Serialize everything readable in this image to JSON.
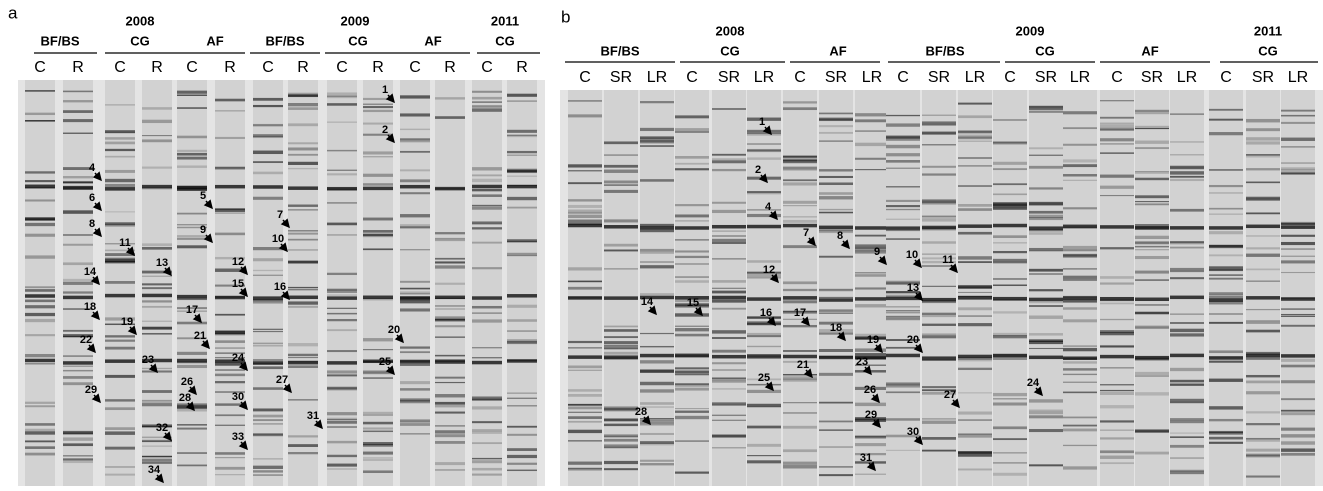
{
  "panels": [
    {
      "label": "a",
      "years": [
        "2008",
        "2009",
        "2011"
      ],
      "groups": [
        "BF/BS",
        "CG",
        "AF",
        "BF/BS",
        "CG",
        "AF",
        "CG"
      ],
      "lanes": [
        "C",
        "R",
        "C",
        "R",
        "C",
        "R",
        "C",
        "R",
        "C",
        "R",
        "C",
        "R",
        "C",
        "R"
      ],
      "markers": [
        "1",
        "2",
        "4",
        "6",
        "8",
        "11",
        "13",
        "14",
        "18",
        "19",
        "22",
        "29",
        "5",
        "9",
        "17",
        "21",
        "23",
        "26",
        "28",
        "7",
        "10",
        "16",
        "12",
        "15",
        "24",
        "27",
        "30",
        "31",
        "32",
        "33",
        "34",
        "20",
        "25"
      ]
    },
    {
      "label": "b",
      "years": [
        "2008",
        "2009",
        "2011"
      ],
      "groups": [
        "BF/BS",
        "CG",
        "AF",
        "BF/BS",
        "CG",
        "AF",
        "CG"
      ],
      "lanes": [
        "C",
        "SR",
        "LR",
        "C",
        "SR",
        "LR",
        "C",
        "SR",
        "LR",
        "C",
        "SR",
        "LR",
        "C",
        "SR",
        "LR",
        "C",
        "SR",
        "LR",
        "C",
        "SR",
        "LR"
      ],
      "markers": [
        "1",
        "2",
        "4",
        "7",
        "8",
        "12",
        "14",
        "15",
        "16",
        "17",
        "18",
        "21",
        "25",
        "28",
        "9",
        "10",
        "11",
        "13",
        "19",
        "20",
        "23",
        "26",
        "27",
        "29",
        "30",
        "31",
        "24"
      ]
    }
  ]
}
